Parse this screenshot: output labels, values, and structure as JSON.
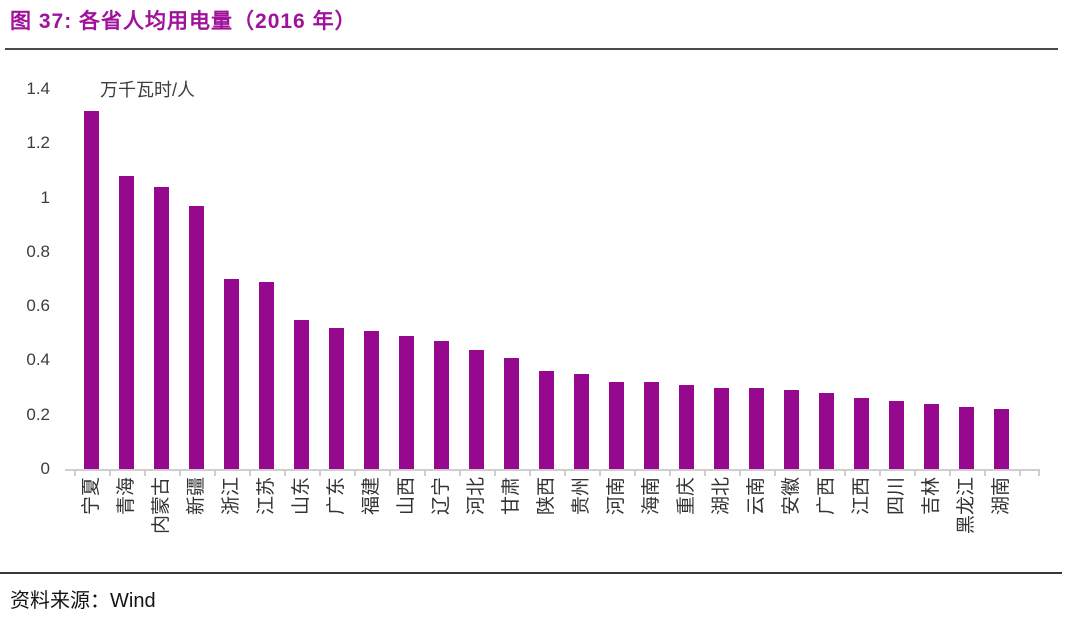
{
  "header": {
    "title": "图 37:  各省人均用电量（2016 年）"
  },
  "footer": {
    "source_label": "资料来源：",
    "source_value": "Wind"
  },
  "chart_data": {
    "type": "bar",
    "title": "各省人均用电量（2016 年）",
    "unit_label": "万千瓦时/人",
    "xlabel": "",
    "ylabel": "万千瓦时/人",
    "ylim": [
      0,
      1.4
    ],
    "ytick_labels": [
      "0",
      "0.2",
      "0.4",
      "0.6",
      "0.8",
      "1",
      "1.2",
      "1.4"
    ],
    "grid": false,
    "legend": false,
    "bar_color": "#96098E",
    "axis_color": "#cfcfcf",
    "categories": [
      "宁夏",
      "青海",
      "内蒙古",
      "新疆",
      "浙江",
      "江苏",
      "山东",
      "广东",
      "福建",
      "山西",
      "辽宁",
      "河北",
      "甘肃",
      "陕西",
      "贵州",
      "河南",
      "海南",
      "重庆",
      "湖北",
      "云南",
      "安徽",
      "广西",
      "江西",
      "四川",
      "吉林",
      "黑龙江",
      "湖南"
    ],
    "values": [
      1.32,
      1.08,
      1.04,
      0.97,
      0.7,
      0.69,
      0.55,
      0.52,
      0.51,
      0.49,
      0.47,
      0.44,
      0.41,
      0.36,
      0.35,
      0.32,
      0.32,
      0.31,
      0.3,
      0.3,
      0.29,
      0.28,
      0.26,
      0.25,
      0.24,
      0.23,
      0.22
    ]
  }
}
